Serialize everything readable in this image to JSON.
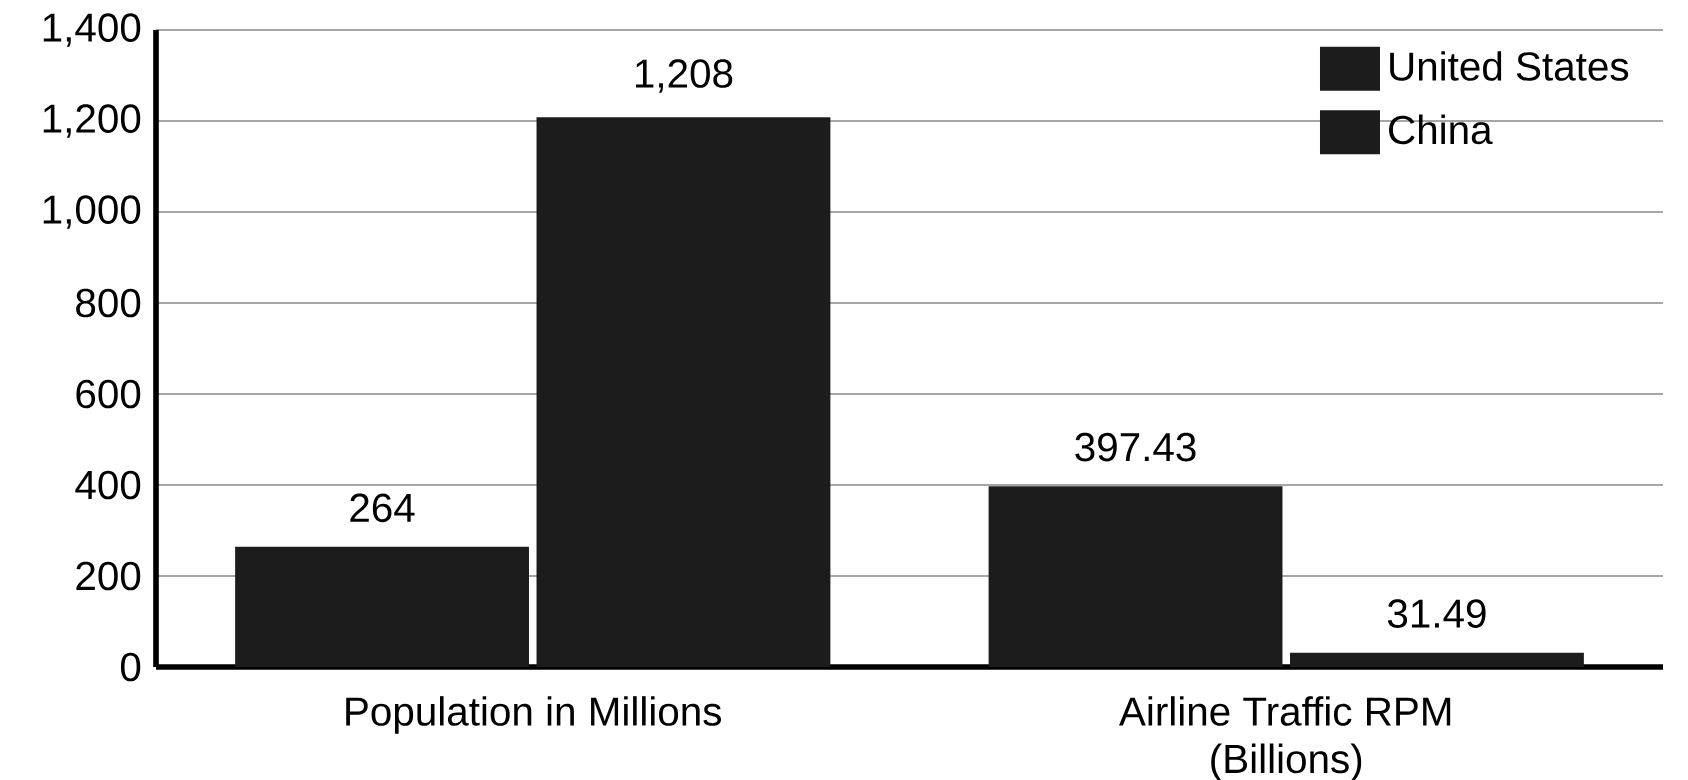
{
  "chart_data": {
    "type": "bar",
    "categories": [
      "Population in Millions",
      "Airline Traffic RPM (Billions)"
    ],
    "series": [
      {
        "name": "United States",
        "color": "#1c1c1c",
        "values": [
          264,
          397.43
        ],
        "value_labels": [
          "264",
          "397.43"
        ]
      },
      {
        "name": "China",
        "color": "#1c1c1c",
        "values": [
          1208,
          31.49
        ],
        "value_labels": [
          "1,208",
          "31.49"
        ]
      }
    ],
    "ylim": [
      0,
      1400
    ],
    "yticks": [
      0,
      200,
      400,
      600,
      800,
      {
        "value": 1000,
        "label": "1,000"
      },
      {
        "value": 1200,
        "label": "1,200"
      },
      {
        "value": 1400,
        "label": "1,400"
      }
    ],
    "grid": "y",
    "legend": "top right"
  }
}
